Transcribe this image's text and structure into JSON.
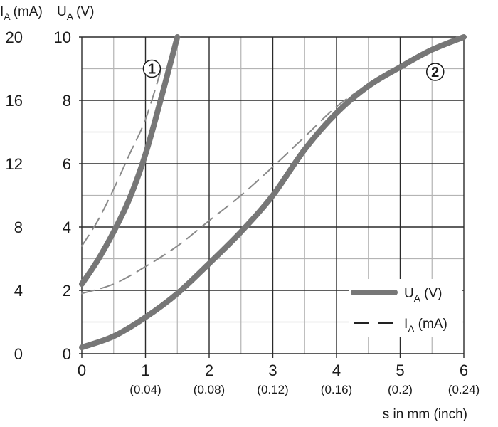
{
  "chart_data": {
    "type": "line",
    "x_axis": {
      "label": "s in mm (inch)",
      "range": [
        0,
        6
      ],
      "ticks": [
        {
          "value": 0,
          "label": "0",
          "sublabel": ""
        },
        {
          "value": 1,
          "label": "1",
          "sublabel": "(0.04)"
        },
        {
          "value": 2,
          "label": "2",
          "sublabel": "(0.08)"
        },
        {
          "value": 3,
          "label": "3",
          "sublabel": "(0.12)"
        },
        {
          "value": 4,
          "label": "4",
          "sublabel": "(0.16)"
        },
        {
          "value": 5,
          "label": "5",
          "sublabel": "(0.2)"
        },
        {
          "value": 6,
          "label": "6",
          "sublabel": "(0.24)"
        }
      ]
    },
    "y_axis_voltage": {
      "label_main": "U",
      "label_sub": "A",
      "label_unit": "(V)",
      "range": [
        0,
        10
      ],
      "ticks": [
        {
          "value": 0,
          "label": "0"
        },
        {
          "value": 2,
          "label": "2"
        },
        {
          "value": 4,
          "label": "4"
        },
        {
          "value": 6,
          "label": "6"
        },
        {
          "value": 8,
          "label": "8"
        },
        {
          "value": 10,
          "label": "10"
        }
      ]
    },
    "y_axis_current": {
      "label_main": "I",
      "label_sub": "A",
      "label_unit": "(mA)",
      "range": [
        0,
        20
      ],
      "ticks": [
        {
          "value": 0,
          "label": "0"
        },
        {
          "value": 4,
          "label": "4"
        },
        {
          "value": 8,
          "label": "8"
        },
        {
          "value": 12,
          "label": "12"
        },
        {
          "value": 16,
          "label": "16"
        },
        {
          "value": 20,
          "label": "20"
        }
      ]
    },
    "grid": true,
    "grid_x_step": 0.5,
    "grid_y_step": 1,
    "series": [
      {
        "name": "U_A (V)",
        "curve": "1",
        "style": "solid",
        "axis": "voltage",
        "x": [
          0,
          0.25,
          0.5,
          0.75,
          1.0,
          1.25,
          1.5
        ],
        "y": [
          2.2,
          2.95,
          3.85,
          4.9,
          6.3,
          8.1,
          10.0
        ]
      },
      {
        "name": "I_A (mA)",
        "curve": "1",
        "style": "dashed",
        "axis": "voltage",
        "x": [
          0,
          0.25,
          0.5,
          0.75,
          1.0,
          1.25
        ],
        "y": [
          3.4,
          4.2,
          5.2,
          6.3,
          7.4,
          9.0
        ]
      },
      {
        "name": "U_A (V)",
        "curve": "2",
        "style": "solid",
        "axis": "voltage",
        "x": [
          0,
          0.5,
          1.0,
          1.5,
          2.0,
          2.5,
          3.0,
          3.5,
          4.0,
          4.5,
          5.0,
          5.5,
          6.0
        ],
        "y": [
          0.2,
          0.55,
          1.15,
          1.9,
          2.85,
          3.85,
          5.0,
          6.45,
          7.6,
          8.45,
          9.05,
          9.6,
          10.0
        ]
      },
      {
        "name": "I_A (mA)",
        "curve": "2",
        "style": "dashed",
        "axis": "voltage",
        "x": [
          0,
          0.5,
          1.0,
          1.5,
          2.0,
          2.5,
          3.0,
          3.5,
          4.0,
          4.5,
          5.0,
          5.5,
          6.0
        ],
        "y": [
          1.9,
          2.2,
          2.75,
          3.4,
          4.2,
          5.0,
          5.9,
          6.85,
          7.8,
          8.5,
          9.1,
          9.6,
          10.0
        ]
      }
    ],
    "curve_markers": [
      {
        "label": "1",
        "x": 1.1,
        "y": 9.0
      },
      {
        "label": "2",
        "x": 5.55,
        "y": 8.9
      }
    ],
    "legend": {
      "placement": "bottom-right",
      "entries": [
        {
          "style": "solid",
          "main": "U",
          "sub": "A",
          "unit": "(V)"
        },
        {
          "style": "dashed",
          "main": "I",
          "sub": "A",
          "unit": "(mA)"
        }
      ]
    },
    "colors": {
      "curve": "#777777",
      "dashed": "#8a8a8a",
      "grid_major": "#2a2a2a",
      "grid_minor": "#b4b4b4",
      "text": "#1a1a1a",
      "legend_dash": "#222222"
    }
  }
}
